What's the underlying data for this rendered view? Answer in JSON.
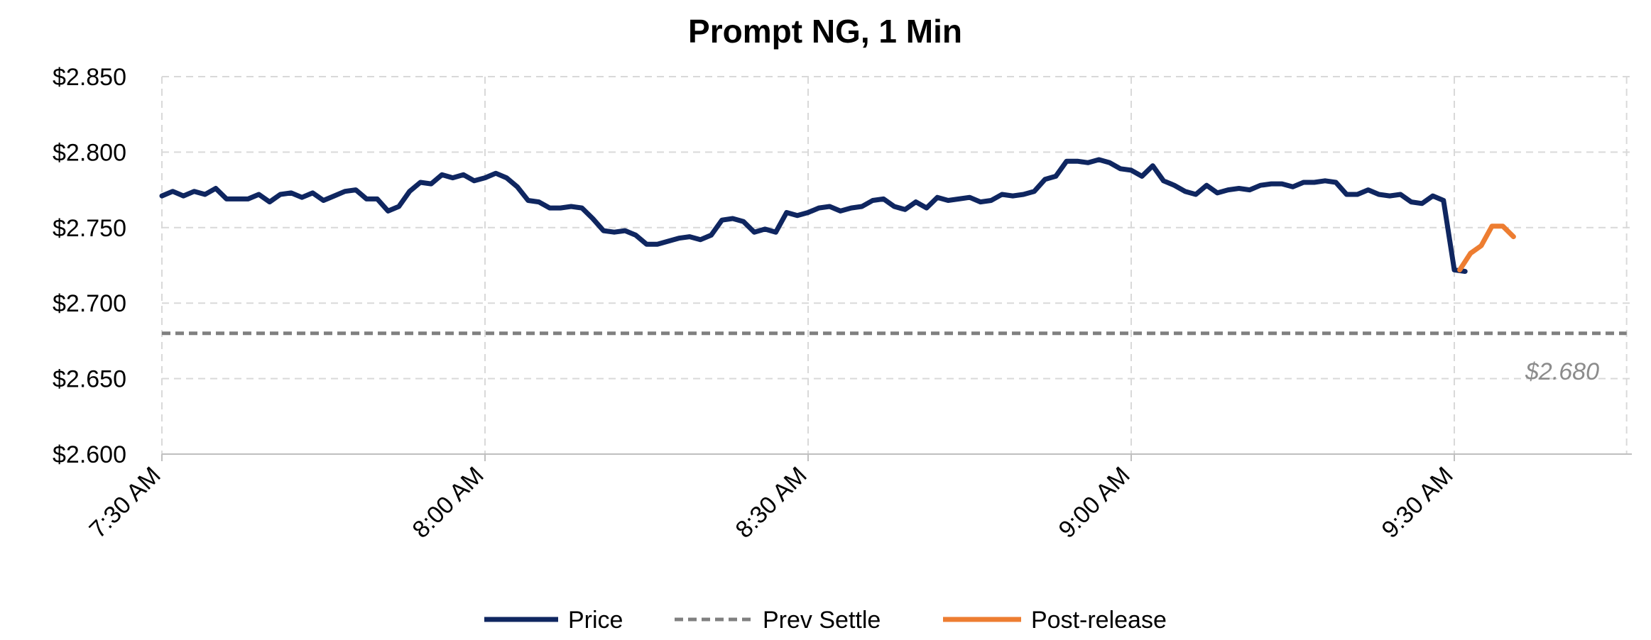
{
  "chart_data": {
    "type": "line",
    "title": "Prompt NG, 1 Min",
    "xlabel": "",
    "ylabel": "",
    "y_tick_labels": [
      "$2.600",
      "$2.650",
      "$2.700",
      "$2.750",
      "$2.800",
      "$2.850"
    ],
    "y_ticks": [
      2.6,
      2.65,
      2.7,
      2.75,
      2.8,
      2.85
    ],
    "ylim": [
      2.6,
      2.85
    ],
    "x_tick_labels": [
      "7:30 AM",
      "8:00 AM",
      "8:30 AM",
      "9:00 AM",
      "9:30 AM"
    ],
    "x_ticks_minutes": [
      0,
      30,
      60,
      90,
      120
    ],
    "xlim_minutes": [
      0,
      136
    ],
    "grid": true,
    "legend_position": "bottom",
    "annotation": "$2.680",
    "prev_settle": 2.68,
    "series": [
      {
        "name": "Price",
        "color": "#0f2660",
        "style": "solid",
        "x_minutes": [
          0,
          1,
          2,
          3,
          4,
          5,
          6,
          7,
          8,
          9,
          10,
          11,
          12,
          13,
          14,
          15,
          16,
          17,
          18,
          19,
          20,
          21,
          22,
          23,
          24,
          25,
          26,
          27,
          28,
          29,
          30,
          31,
          32,
          33,
          34,
          35,
          36,
          37,
          38,
          39,
          40,
          41,
          42,
          43,
          44,
          45,
          46,
          47,
          48,
          49,
          50,
          51,
          52,
          53,
          54,
          55,
          56,
          57,
          58,
          59,
          60,
          61,
          62,
          63,
          64,
          65,
          66,
          67,
          68,
          69,
          70,
          71,
          72,
          73,
          74,
          75,
          76,
          77,
          78,
          79,
          80,
          81,
          82,
          83,
          84,
          85,
          86,
          87,
          88,
          89,
          90,
          91,
          92,
          93,
          94,
          95,
          96,
          97,
          98,
          99,
          100,
          101,
          102,
          103,
          104,
          105,
          106,
          107,
          108,
          109,
          110,
          111,
          112,
          113,
          114,
          115,
          116,
          117,
          118,
          119,
          120,
          121
        ],
        "values": [
          2.771,
          2.774,
          2.771,
          2.774,
          2.772,
          2.776,
          2.769,
          2.769,
          2.769,
          2.772,
          2.767,
          2.772,
          2.773,
          2.77,
          2.773,
          2.768,
          2.771,
          2.774,
          2.775,
          2.769,
          2.769,
          2.761,
          2.764,
          2.774,
          2.78,
          2.779,
          2.785,
          2.783,
          2.785,
          2.781,
          2.783,
          2.786,
          2.783,
          2.777,
          2.768,
          2.767,
          2.763,
          2.763,
          2.764,
          2.763,
          2.756,
          2.748,
          2.747,
          2.748,
          2.745,
          2.739,
          2.739,
          2.741,
          2.743,
          2.744,
          2.742,
          2.745,
          2.755,
          2.756,
          2.754,
          2.747,
          2.749,
          2.747,
          2.76,
          2.758,
          2.76,
          2.763,
          2.764,
          2.761,
          2.763,
          2.764,
          2.768,
          2.769,
          2.764,
          2.762,
          2.767,
          2.763,
          2.77,
          2.768,
          2.769,
          2.77,
          2.767,
          2.768,
          2.772,
          2.771,
          2.772,
          2.774,
          2.782,
          2.784,
          2.794,
          2.794,
          2.793,
          2.795,
          2.793,
          2.789,
          2.788,
          2.784,
          2.791,
          2.781,
          2.778,
          2.774,
          2.772,
          2.778,
          2.773,
          2.775,
          2.776,
          2.775,
          2.778,
          2.779,
          2.779,
          2.777,
          2.78,
          2.78,
          2.781,
          2.78,
          2.772,
          2.772,
          2.775,
          2.772,
          2.771,
          2.772,
          2.767,
          2.766,
          2.771,
          2.768,
          2.722,
          2.721
        ]
      },
      {
        "name": "Prev Settle",
        "color": "#808080",
        "style": "dashed",
        "x_minutes": [
          0,
          136
        ],
        "values": [
          2.68,
          2.68
        ]
      },
      {
        "name": "Post-release",
        "color": "#ed7d31",
        "style": "solid",
        "x_minutes": [
          120.5,
          121.5,
          122.5,
          123.5,
          124.5,
          125.5
        ],
        "values": [
          2.722,
          2.733,
          2.738,
          2.751,
          2.751,
          2.744
        ]
      }
    ]
  }
}
